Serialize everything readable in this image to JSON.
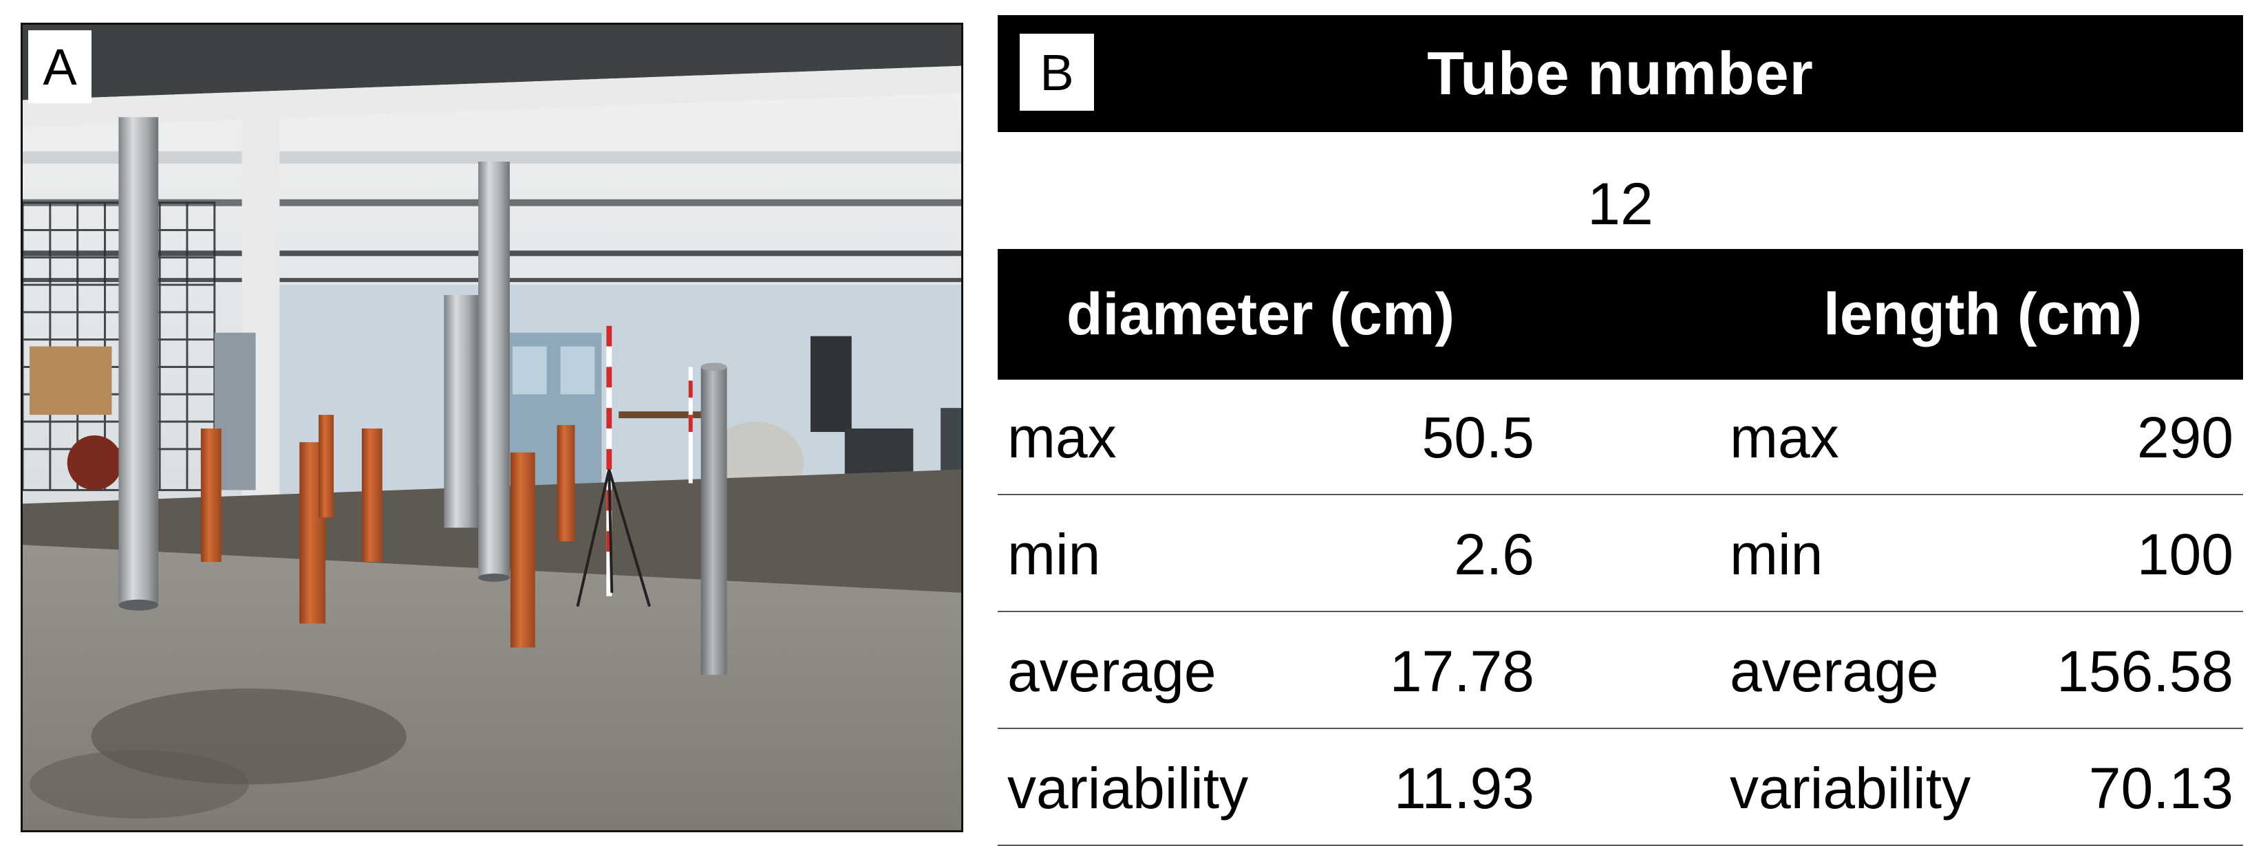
{
  "panel_a": {
    "label": "A",
    "description_icon": "warehouse-photo"
  },
  "panel_b": {
    "label": "B",
    "title": "Tube number",
    "tube_count": "12",
    "columns": {
      "diameter": "diameter (cm)",
      "length": "length (cm)"
    },
    "rows": [
      {
        "label_d": "max",
        "diameter": "50.5",
        "label_l": "max",
        "length": "290"
      },
      {
        "label_d": "min",
        "diameter": "2.6",
        "label_l": "min",
        "length": "100"
      },
      {
        "label_d": "average",
        "diameter": "17.78",
        "label_l": "average",
        "length": "156.58"
      },
      {
        "label_d": "variability",
        "diameter": "11.93",
        "label_l": "variability",
        "length": "70.13"
      }
    ]
  },
  "colors": {
    "header_bg": "#000000",
    "header_text": "#ffffff",
    "orange_tube": "#c4622d",
    "steel_tube": "#a9adb0"
  }
}
